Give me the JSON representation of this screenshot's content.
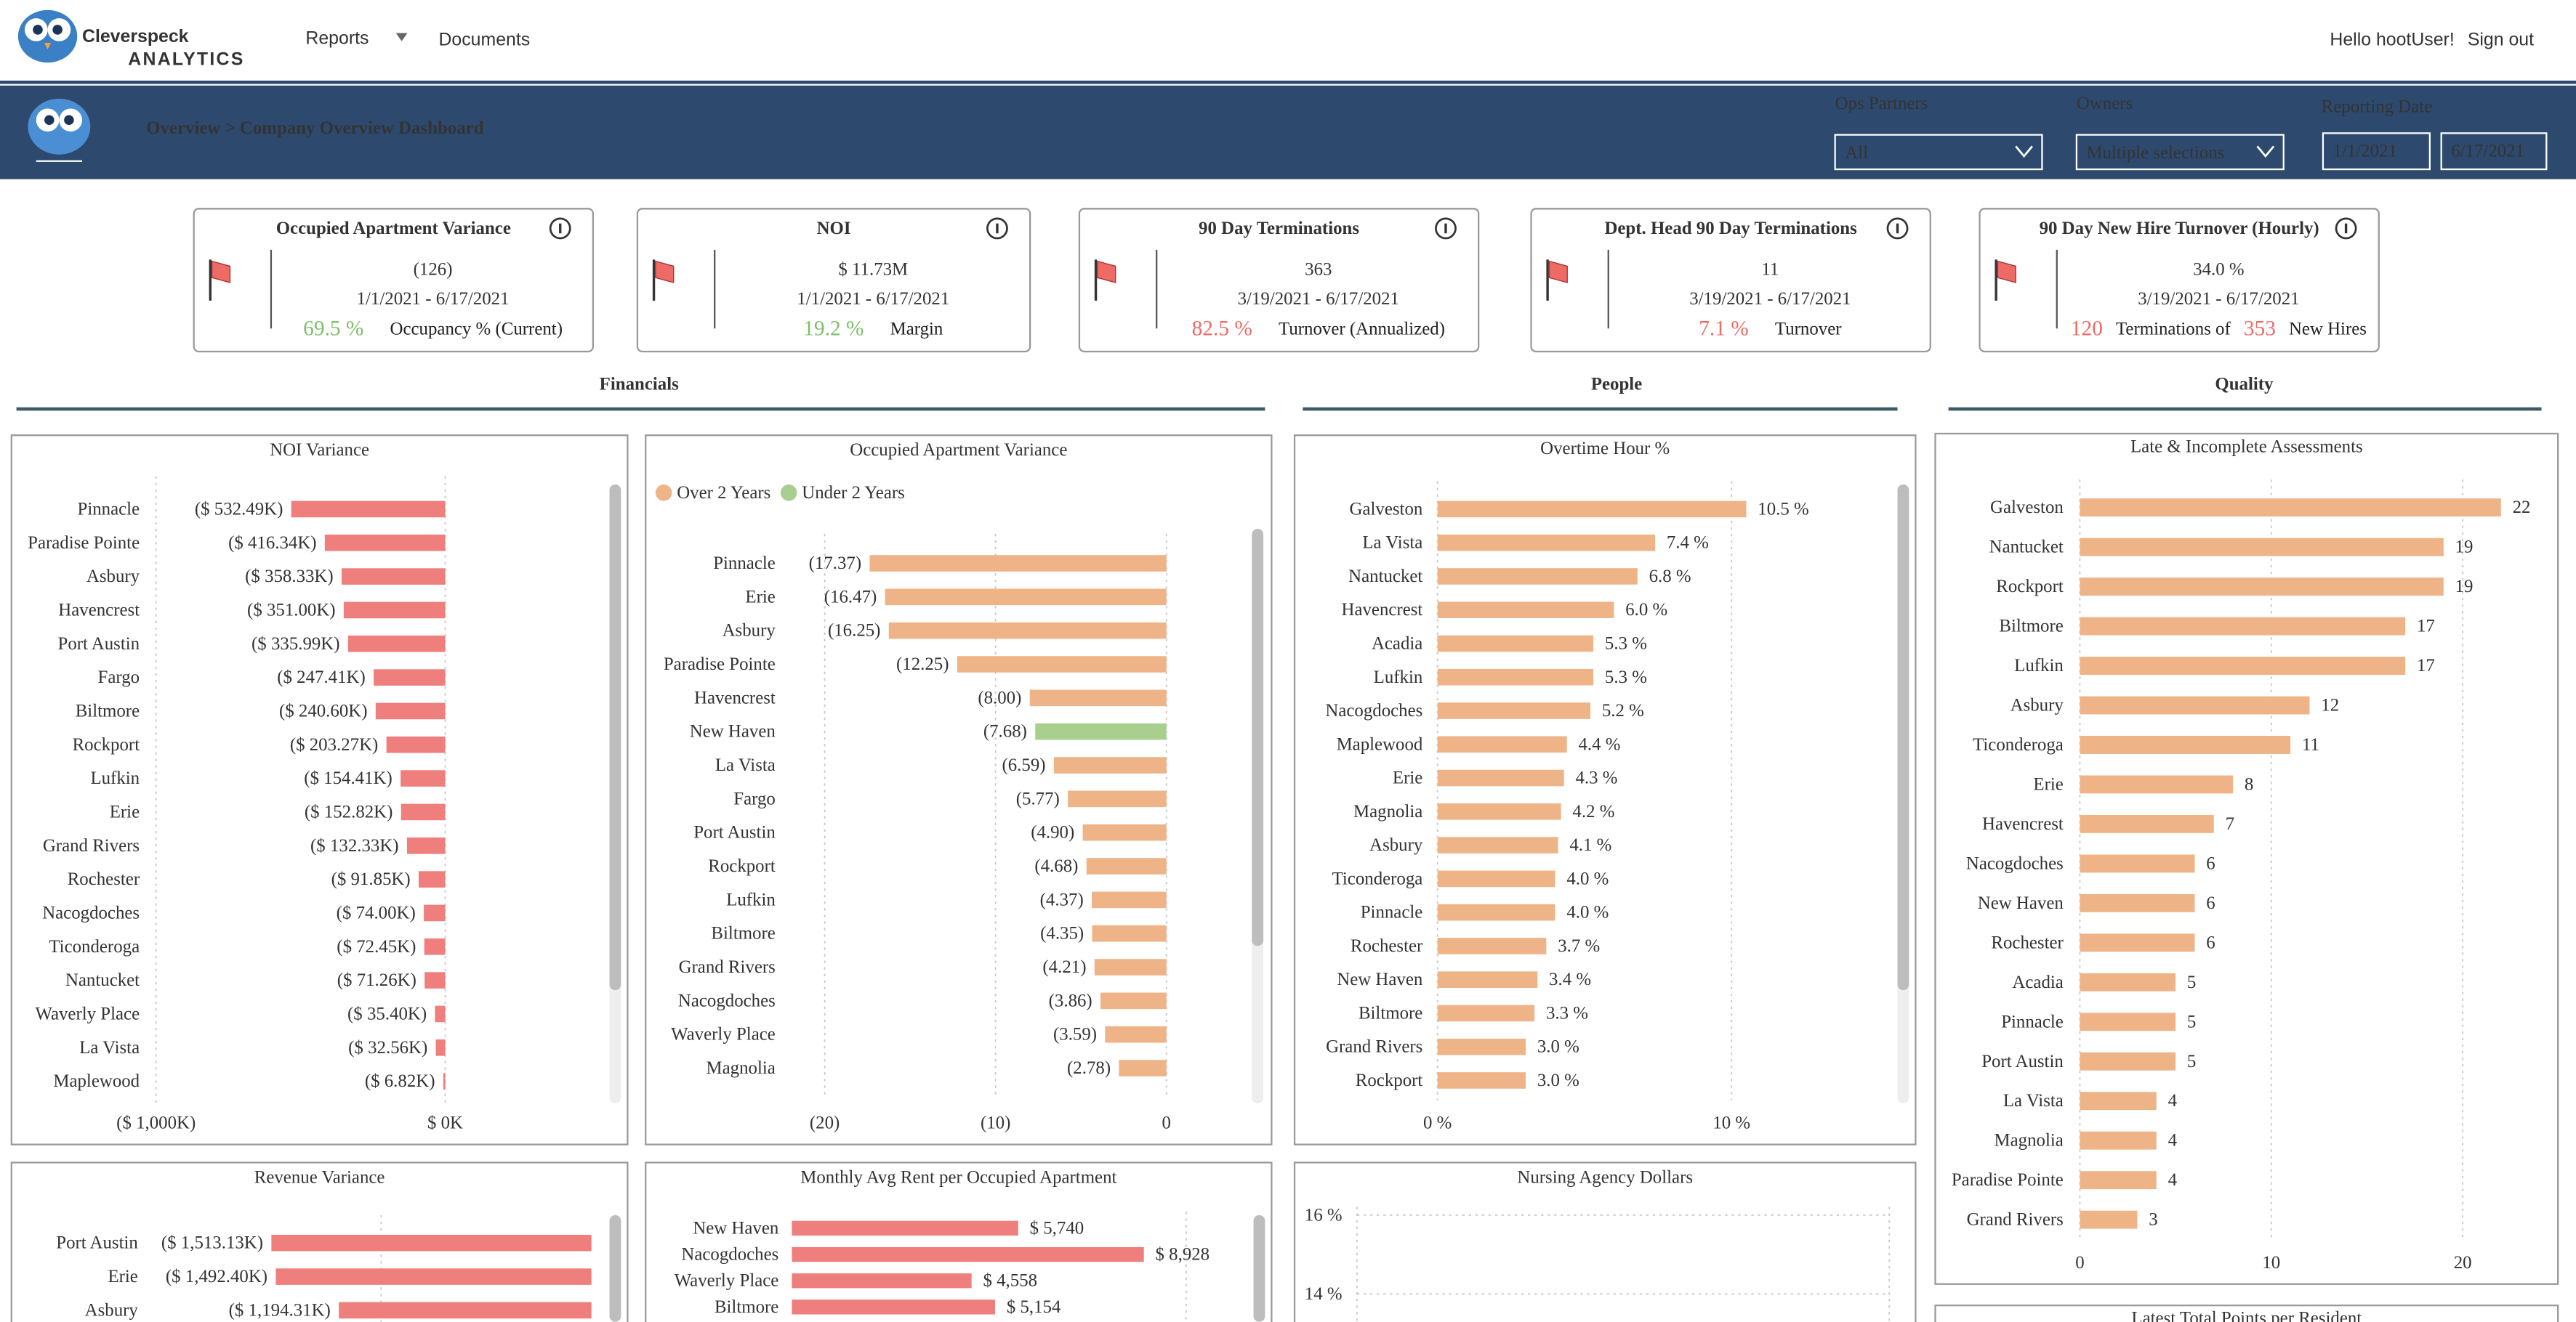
{
  "header": {
    "brand": "Cleverspeck",
    "brand_sub": "ANALYTICS",
    "nav": [
      "Reports",
      "Documents"
    ],
    "greeting": "Hello hootUser!",
    "sign_out": "Sign out"
  },
  "banner": {
    "title": "Overview > Company Overview Dashboard",
    "filters": [
      {
        "label": "Ops Partners",
        "value": "All"
      },
      {
        "label": "Owners",
        "value": "Multiple selections"
      }
    ],
    "date_label": "Reporting Date",
    "date_from": "1/1/2021",
    "date_to": "6/17/2021"
  },
  "kpis": [
    {
      "title": "Occupied Apartment Variance",
      "value": "(126)",
      "date": "1/1/2021 - 6/17/2021",
      "parts": [
        {
          "text": "69.5 %",
          "color": "#7cbf6a"
        },
        {
          "text": "Occupancy % (Current)",
          "color": "#222222"
        }
      ]
    },
    {
      "title": "NOI",
      "value": "$ 11.73M",
      "date": "1/1/2021 - 6/17/2021",
      "parts": [
        {
          "text": "19.2 %",
          "color": "#7cbf6a"
        },
        {
          "text": "Margin",
          "color": "#222222"
        }
      ]
    },
    {
      "title": "90 Day Terminations",
      "value": "363",
      "date": "3/19/2021 - 6/17/2021",
      "parts": [
        {
          "text": "82.5 %",
          "color": "#ee6a64"
        },
        {
          "text": "Turnover (Annualized)",
          "color": "#222222"
        }
      ]
    },
    {
      "title": "Dept. Head 90 Day Terminations",
      "value": "11",
      "date": "3/19/2021 - 6/17/2021",
      "parts": [
        {
          "text": "7.1 %",
          "color": "#ee6a64"
        },
        {
          "text": "Turnover",
          "color": "#222222"
        }
      ]
    },
    {
      "title": "90 Day New Hire Turnover (Hourly)",
      "value": "34.0 %",
      "date": "3/19/2021 - 6/17/2021",
      "parts": [
        {
          "text": "120",
          "color": "#ee6a64"
        },
        {
          "text": "Terminations of",
          "color": "#222222"
        },
        {
          "text": "353",
          "color": "#ee6a64"
        },
        {
          "text": "New Hires",
          "color": "#222222"
        }
      ]
    }
  ],
  "sections": [
    "Financials",
    "People",
    "Quality"
  ],
  "charts": {
    "noi": {
      "type": "bar",
      "title": "NOI Variance",
      "color": "#ef7f7c",
      "categories": [
        "Pinnacle",
        "Paradise Pointe",
        "Asbury",
        "Havencrest",
        "Port Austin",
        "Fargo",
        "Biltmore",
        "Rockport",
        "Lufkin",
        "Erie",
        "Grand Rivers",
        "Rochester",
        "Nacogdoches",
        "Ticonderoga",
        "Nantucket",
        "Waverly Place",
        "La Vista",
        "Maplewood"
      ],
      "values": [
        -532.49,
        -416.34,
        -358.33,
        -351.0,
        -335.99,
        -247.41,
        -240.6,
        -203.27,
        -154.41,
        -152.82,
        -132.33,
        -91.85,
        -74.0,
        -72.45,
        -71.26,
        -35.4,
        -32.56,
        -6.82
      ],
      "value_labels": [
        "($ 532.49K)",
        "($ 416.34K)",
        "($ 358.33K)",
        "($ 351.00K)",
        "($ 335.99K)",
        "($ 247.41K)",
        "($ 240.60K)",
        "($ 203.27K)",
        "($ 154.41K)",
        "($ 152.82K)",
        "($ 132.33K)",
        "($ 91.85K)",
        "($ 74.00K)",
        "($ 72.45K)",
        "($ 71.26K)",
        "($ 35.40K)",
        "($ 32.56K)",
        "($ 6.82K)"
      ],
      "xlim": [
        -1000,
        0
      ],
      "xticks": [
        {
          "value": -1000,
          "label": "($ 1,000K)"
        },
        {
          "value": 0,
          "label": "$ 0K"
        }
      ]
    },
    "occupied": {
      "type": "bar",
      "title": "Occupied Apartment Variance",
      "categories": [
        "Pinnacle",
        "Erie",
        "Asbury",
        "Paradise Pointe",
        "Havencrest",
        "New Haven",
        "La Vista",
        "Fargo",
        "Port Austin",
        "Rockport",
        "Lufkin",
        "Biltmore",
        "Grand Rivers",
        "Nacogdoches",
        "Waverly Place",
        "Magnolia"
      ],
      "series": [
        {
          "name": "Over 2 Years",
          "color": "#eeb488",
          "values": [
            -17.37,
            -16.47,
            -16.25,
            -12.25,
            -8.0,
            null,
            -6.59,
            -5.77,
            -4.9,
            -4.68,
            -4.37,
            -4.35,
            -4.21,
            -3.86,
            -3.59,
            -2.78
          ],
          "value_labels": [
            "(17.37)",
            "(16.47)",
            "(16.25)",
            "(12.25)",
            "(8.00)",
            null,
            "(6.59)",
            "(5.77)",
            "(4.90)",
            "(4.68)",
            "(4.37)",
            "(4.35)",
            "(4.21)",
            "(3.86)",
            "(3.59)",
            "(2.78)"
          ]
        },
        {
          "name": "Under 2 Years",
          "color": "#a9cf8f",
          "values": [
            null,
            null,
            null,
            null,
            null,
            -7.68,
            null,
            null,
            null,
            null,
            null,
            null,
            null,
            null,
            null,
            null
          ],
          "value_labels": [
            null,
            null,
            null,
            null,
            null,
            "(7.68)",
            null,
            null,
            null,
            null,
            null,
            null,
            null,
            null,
            null,
            null
          ]
        }
      ],
      "xlim": [
        -20,
        0
      ],
      "xticks": [
        {
          "value": -20,
          "label": "(20)"
        },
        {
          "value": -10,
          "label": "(10)"
        },
        0
      ]
    },
    "overtime": {
      "type": "bar",
      "title": "Overtime Hour %",
      "color": "#eeb488",
      "categories": [
        "Galveston",
        "La Vista",
        "Nantucket",
        "Havencrest",
        "Acadia",
        "Lufkin",
        "Nacogdoches",
        "Maplewood",
        "Erie",
        "Magnolia",
        "Asbury",
        "Ticonderoga",
        "Pinnacle",
        "Rochester",
        "New Haven",
        "Biltmore",
        "Grand Rivers",
        "Rockport"
      ],
      "values": [
        10.5,
        7.4,
        6.8,
        6.0,
        5.3,
        5.3,
        5.2,
        4.4,
        4.3,
        4.2,
        4.1,
        4.0,
        4.0,
        3.7,
        3.4,
        3.3,
        3.0,
        3.0
      ],
      "value_labels": [
        "10.5 %",
        "7.4 %",
        "6.8 %",
        "6.0 %",
        "5.3 %",
        "5.3 %",
        "5.2 %",
        "4.4 %",
        "4.3 %",
        "4.2 %",
        "4.1 %",
        "4.0 %",
        "4.0 %",
        "3.7 %",
        "3.4 %",
        "3.3 %",
        "3.0 %",
        "3.0 %"
      ],
      "xlim": [
        0,
        15
      ],
      "xticks": [
        {
          "value": 0,
          "label": "0 %"
        },
        {
          "value": 10,
          "label": "10 %"
        }
      ]
    },
    "late": {
      "type": "bar",
      "title": "Late & Incomplete Assessments",
      "color": "#eeb488",
      "categories": [
        "Galveston",
        "Nantucket",
        "Rockport",
        "Biltmore",
        "Lufkin",
        "Asbury",
        "Ticonderoga",
        "Erie",
        "Havencrest",
        "Nacogdoches",
        "New Haven",
        "Rochester",
        "Acadia",
        "Pinnacle",
        "Port Austin",
        "La Vista",
        "Magnolia",
        "Paradise Pointe",
        "Grand Rivers"
      ],
      "values": [
        22,
        19,
        19,
        17,
        17,
        12,
        11,
        8,
        7,
        6,
        6,
        6,
        5,
        5,
        5,
        4,
        4,
        4,
        3
      ],
      "xlim": [
        0,
        23
      ],
      "xticks": [
        0,
        10,
        20
      ]
    },
    "revenue": {
      "type": "bar",
      "title": "Revenue Variance",
      "color": "#ef7f7c",
      "categories": [
        "Port Austin",
        "Erie",
        "Asbury"
      ],
      "values": [
        -1513.13,
        -1492.4,
        -1194.31
      ],
      "value_labels": [
        "($ 1,513.13K)",
        "($ 1,492.40K)",
        "($ 1,194.31K)"
      ],
      "xlim": [
        -1600,
        0
      ]
    },
    "rent": {
      "type": "bar",
      "title": "Monthly Avg Rent per Occupied Apartment",
      "color": "#ef7f7c",
      "categories": [
        "New Haven",
        "Nacogdoches",
        "Waverly Place",
        "Biltmore"
      ],
      "values": [
        5740,
        8928,
        4558,
        5154
      ],
      "value_labels": [
        "$ 5,740",
        "$ 8,928",
        "$ 4,558",
        "$ 5,154"
      ],
      "xlim": [
        0,
        10000
      ]
    },
    "nursing": {
      "type": "scatter",
      "title": "Nursing Agency Dollars",
      "yticks": [
        {
          "value": 16,
          "label": "16 %"
        },
        {
          "value": 14,
          "label": "14 %"
        }
      ]
    },
    "points": {
      "type": "bar",
      "title": "Latest Total Points per Resident"
    }
  }
}
